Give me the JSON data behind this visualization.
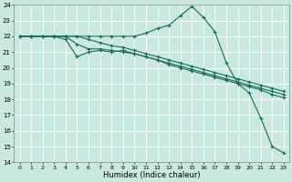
{
  "xlabel": "Humidex (Indice chaleur)",
  "bg_color": "#c8e8e0",
  "grid_color": "#ffffff",
  "line_color": "#1a6b5a",
  "xlim": [
    -0.5,
    23.5
  ],
  "ylim": [
    14,
    24
  ],
  "yticks": [
    14,
    15,
    16,
    17,
    18,
    19,
    20,
    21,
    22,
    23,
    24
  ],
  "xticks": [
    0,
    1,
    2,
    3,
    4,
    5,
    6,
    7,
    8,
    9,
    10,
    11,
    12,
    13,
    14,
    15,
    16,
    17,
    18,
    19,
    20,
    21,
    22,
    23
  ],
  "series": [
    {
      "x": [
        0,
        1,
        2,
        3,
        4,
        5,
        6,
        7,
        8,
        9,
        10,
        11,
        12,
        13,
        14,
        15,
        16,
        17,
        18,
        19,
        20,
        21,
        22,
        23
      ],
      "y": [
        22,
        22,
        22,
        22,
        22,
        22,
        22,
        22,
        22,
        22,
        22,
        22.2,
        22.5,
        22.7,
        23.3,
        23.9,
        23.2,
        22.3,
        20.3,
        19.0,
        18.4,
        16.8,
        15.0,
        14.6
      ]
    },
    {
      "x": [
        0,
        1,
        2,
        3,
        4,
        5,
        6,
        7,
        8,
        9,
        10,
        11,
        12,
        13,
        14,
        15,
        16,
        17,
        18,
        19,
        20,
        21,
        22,
        23
      ],
      "y": [
        22,
        22,
        22,
        22,
        21.8,
        20.7,
        21.0,
        21.1,
        21.0,
        21.1,
        20.9,
        20.7,
        20.5,
        20.2,
        20.0,
        19.8,
        19.6,
        19.4,
        19.2,
        19.0,
        18.8,
        18.6,
        18.3,
        18.1
      ]
    },
    {
      "x": [
        0,
        1,
        2,
        3,
        4,
        5,
        6,
        7,
        8,
        9,
        10,
        11,
        12,
        13,
        14,
        15,
        16,
        17,
        18,
        19,
        20,
        21,
        22,
        23
      ],
      "y": [
        22,
        22,
        22,
        22,
        22,
        21.5,
        21.2,
        21.2,
        21.1,
        21.0,
        20.9,
        20.7,
        20.5,
        20.3,
        20.1,
        19.9,
        19.7,
        19.5,
        19.3,
        19.1,
        18.9,
        18.7,
        18.5,
        18.3
      ]
    },
    {
      "x": [
        0,
        1,
        2,
        3,
        4,
        5,
        6,
        7,
        8,
        9,
        10,
        11,
        12,
        13,
        14,
        15,
        16,
        17,
        18,
        19,
        20,
        21,
        22,
        23
      ],
      "y": [
        22,
        22,
        22,
        22,
        22,
        22,
        21.8,
        21.6,
        21.4,
        21.3,
        21.1,
        20.9,
        20.7,
        20.5,
        20.3,
        20.1,
        19.9,
        19.7,
        19.5,
        19.3,
        19.1,
        18.9,
        18.7,
        18.5
      ]
    }
  ]
}
